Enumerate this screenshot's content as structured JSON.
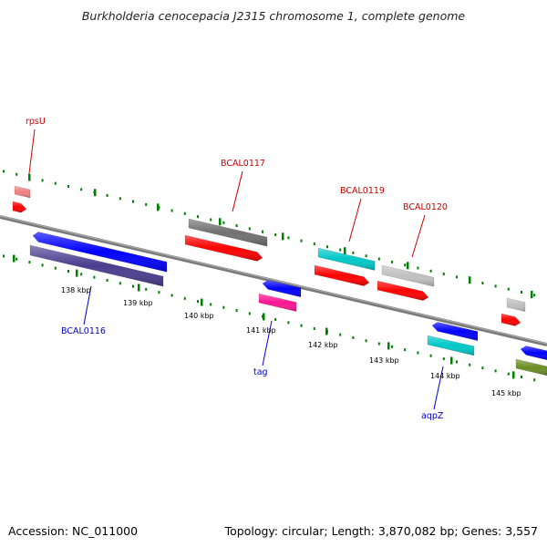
{
  "title": "Burkholderia cenocepacia J2315 chromosome 1, complete genome",
  "footer": {
    "accession": "Accession: NC_011000",
    "summary": "Topology: circular; Length: 3,870,082 bp; Genes: 3,557"
  },
  "scale_labels": [
    "138 kbp",
    "139 kbp",
    "140 kbp",
    "141 kbp",
    "142 kbp",
    "143 kbp",
    "144 kbp",
    "145 kbp"
  ],
  "gene_labels_upper": [
    "rpsU",
    "BCAL0117",
    "BCAL0119",
    "BCAL0120"
  ],
  "gene_labels_lower": [
    "BCAL0116",
    "tag",
    "aqpZ"
  ],
  "colors": {
    "forward_label": "#cc0000",
    "reverse_label": "#0000cc",
    "backbone": "#808080",
    "tick": "#008000",
    "cds_red": "#ff0000",
    "blue": "#0000ff",
    "purple": "#4a3d8f",
    "gray_dark": "#707070",
    "gray_light": "#c0c0c0",
    "pink": "#f08080",
    "cyan": "#00c8c8",
    "magenta": "#ff1493",
    "olive": "#6b8e23"
  }
}
